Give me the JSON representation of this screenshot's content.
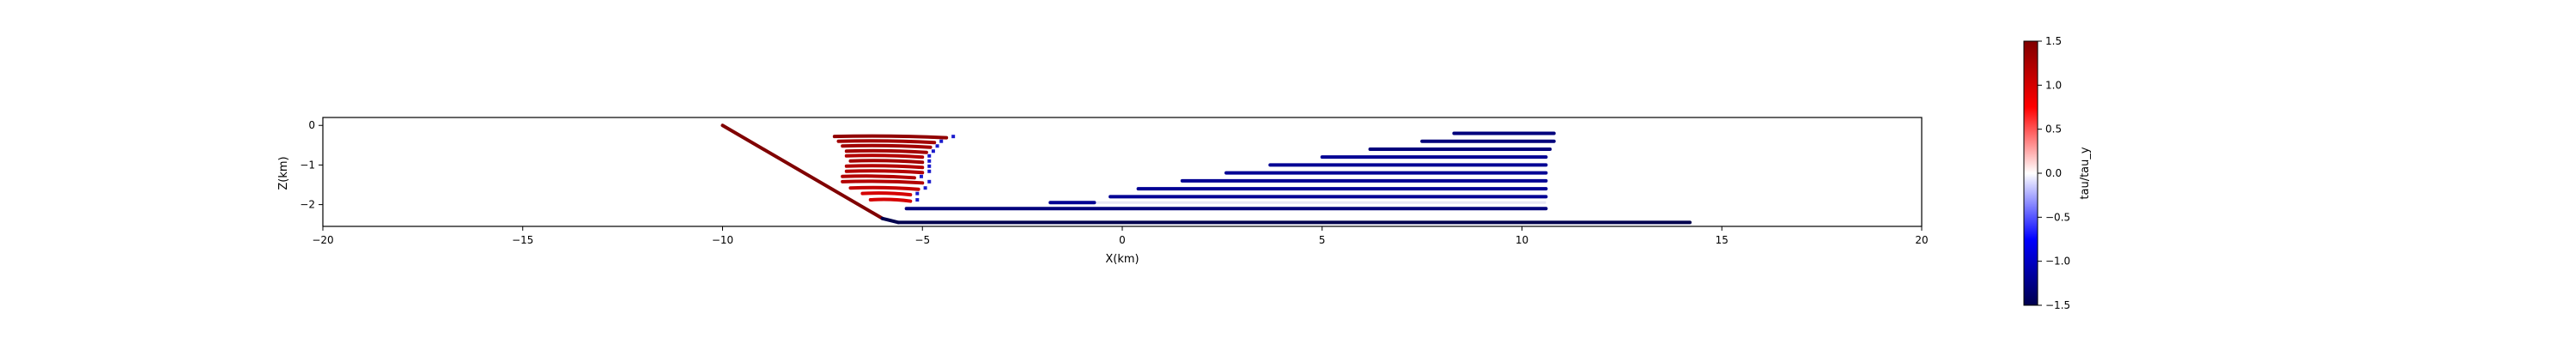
{
  "chart_data": {
    "type": "scatter",
    "title": "",
    "xlabel": "X(km)",
    "ylabel": "Z(km)",
    "xlim": [
      -20,
      20
    ],
    "ylim": [
      -2.55,
      0.2
    ],
    "xticks": [
      -20,
      -15,
      -10,
      -5,
      0,
      5,
      10,
      15,
      20
    ],
    "yticks": [
      0,
      -1,
      -2
    ],
    "grid": false,
    "colorbar": {
      "label": "tau/tau_y",
      "range": [
        -1.5,
        1.5
      ],
      "ticks": [
        1.5,
        1.0,
        0.5,
        0.0,
        -0.5,
        -1.0,
        -1.5
      ],
      "colormap": "seismic"
    },
    "fault": {
      "segments": [
        {
          "x": [
            -10.0,
            -6.0
          ],
          "z": [
            0.0,
            -2.35
          ],
          "value": 1.5
        },
        {
          "x": [
            -6.0,
            -5.6
          ],
          "z": [
            -2.35,
            -2.45
          ],
          "value": -1.5
        },
        {
          "x": [
            -5.6,
            14.2
          ],
          "z": [
            -2.45,
            -2.45
          ],
          "value": -1.5
        }
      ]
    },
    "red_strands": [
      {
        "z": -0.28,
        "x": [
          -7.2,
          -4.4
        ],
        "value": 1.4
      },
      {
        "z": -0.4,
        "x": [
          -7.1,
          -4.7
        ],
        "value": 1.3
      },
      {
        "z": -0.52,
        "x": [
          -7.0,
          -4.8
        ],
        "value": 1.3
      },
      {
        "z": -0.65,
        "x": [
          -6.9,
          -4.9
        ],
        "value": 1.3
      },
      {
        "z": -0.77,
        "x": [
          -6.9,
          -5.0
        ],
        "value": 1.2
      },
      {
        "z": -0.9,
        "x": [
          -6.8,
          -5.0
        ],
        "value": 1.3
      },
      {
        "z": -1.03,
        "x": [
          -6.9,
          -5.0
        ],
        "value": 1.2
      },
      {
        "z": -1.16,
        "x": [
          -6.9,
          -5.0
        ],
        "value": 1.2
      },
      {
        "z": -1.29,
        "x": [
          -7.0,
          -5.2
        ],
        "value": 1.2
      },
      {
        "z": -1.42,
        "x": [
          -7.0,
          -5.0
        ],
        "value": 1.2
      },
      {
        "z": -1.58,
        "x": [
          -6.8,
          -5.1
        ],
        "value": 1.1
      },
      {
        "z": -1.72,
        "x": [
          -6.5,
          -5.3
        ],
        "value": 1.0
      },
      {
        "z": -1.88,
        "x": [
          -6.3,
          -5.3
        ],
        "value": 1.0
      }
    ],
    "blue_strands": [
      {
        "z": -0.2,
        "x": [
          8.3,
          10.8
        ],
        "value": -1.3
      },
      {
        "z": -0.4,
        "x": [
          7.5,
          10.8
        ],
        "value": -1.3
      },
      {
        "z": -0.6,
        "x": [
          6.2,
          10.7
        ],
        "value": -1.3
      },
      {
        "z": -0.8,
        "x": [
          5.0,
          10.6
        ],
        "value": -1.2
      },
      {
        "z": -1.0,
        "x": [
          3.7,
          10.6
        ],
        "value": -1.2
      },
      {
        "z": -1.2,
        "x": [
          2.6,
          10.6
        ],
        "value": -1.2
      },
      {
        "z": -1.4,
        "x": [
          1.5,
          10.6
        ],
        "value": -1.2
      },
      {
        "z": -1.6,
        "x": [
          0.4,
          10.6
        ],
        "value": -1.2
      },
      {
        "z": -1.8,
        "x": [
          -0.3,
          10.6
        ],
        "value": -1.2
      },
      {
        "z": -1.95,
        "x": [
          -1.8,
          -0.7
        ],
        "value": -1.2
      },
      {
        "z": -2.1,
        "x": [
          -5.4,
          10.6
        ],
        "value": -1.3
      }
    ]
  }
}
